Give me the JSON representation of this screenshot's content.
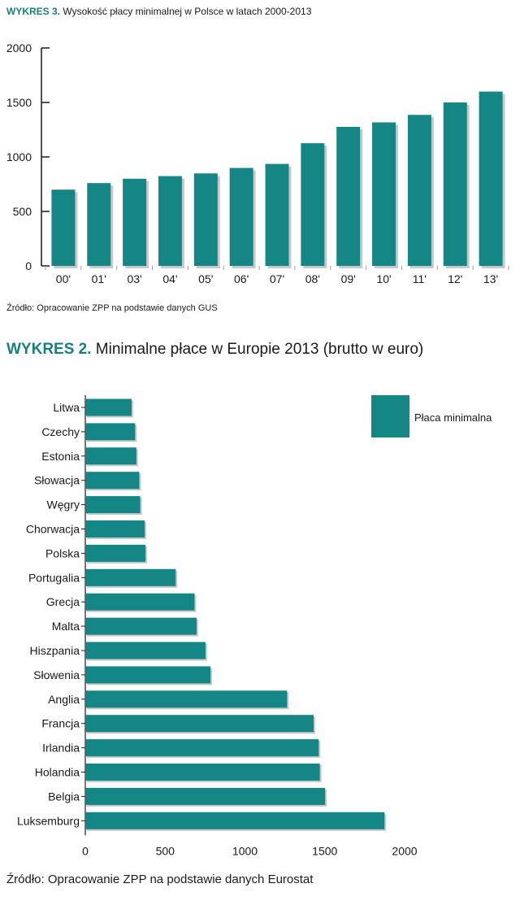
{
  "header1": {
    "lead": "WYKRES 3.",
    "text": " Wysokość płacy minimalnej w Polsce w latach 2000-2013"
  },
  "source1": "Źródło: Opracowanie ZPP na podstawie danych GUS",
  "header2": {
    "lead": "WYKRES 2.",
    "text": " Minimalne płace w Europie 2013 (brutto w euro)"
  },
  "source2": "Źródło: Opracowanie ZPP na podstawie danych Eurostat",
  "colors": {
    "bar": "#148686",
    "shadow": "#c9c9c9",
    "accent": "#177f7f"
  },
  "chart_data": [
    {
      "type": "bar",
      "orientation": "vertical",
      "title": "Wysokość płacy minimalnej w Polsce w latach 2000-2013",
      "categories": [
        "00'",
        "01'",
        "03'",
        "04'",
        "05'",
        "06'",
        "07'",
        "08'",
        "09'",
        "10'",
        "11'",
        "12'",
        "13'"
      ],
      "values": [
        700,
        760,
        800,
        824,
        849,
        899,
        936,
        1126,
        1276,
        1317,
        1386,
        1500,
        1600
      ],
      "yticks": [
        "0",
        "500",
        "1000",
        "1500",
        "2000"
      ],
      "ylim": [
        0,
        2000
      ],
      "grid": false
    },
    {
      "type": "bar",
      "orientation": "horizontal",
      "title": "Minimalne płace w Europie 2013 (brutto w euro)",
      "categories": [
        "Litwa",
        "Czechy",
        "Estonia",
        "Słowacja",
        "Węgry",
        "Chorwacja",
        "Polska",
        "Portugalia",
        "Grecja",
        "Malta",
        "Hiszpania",
        "Słowenia",
        "Anglia",
        "Francja",
        "Irlandia",
        "Holandia",
        "Belgia",
        "Luksemburg"
      ],
      "values": [
        290,
        312,
        320,
        338,
        344,
        372,
        377,
        566,
        684,
        697,
        753,
        784,
        1264,
        1430,
        1462,
        1469,
        1502,
        1874
      ],
      "xticks": [
        "0",
        "500",
        "1000",
        "1500",
        "2000"
      ],
      "xlim": [
        0,
        2000
      ],
      "legend": {
        "label": "Płaca minimalna",
        "position": "top-right"
      },
      "grid": false
    }
  ]
}
